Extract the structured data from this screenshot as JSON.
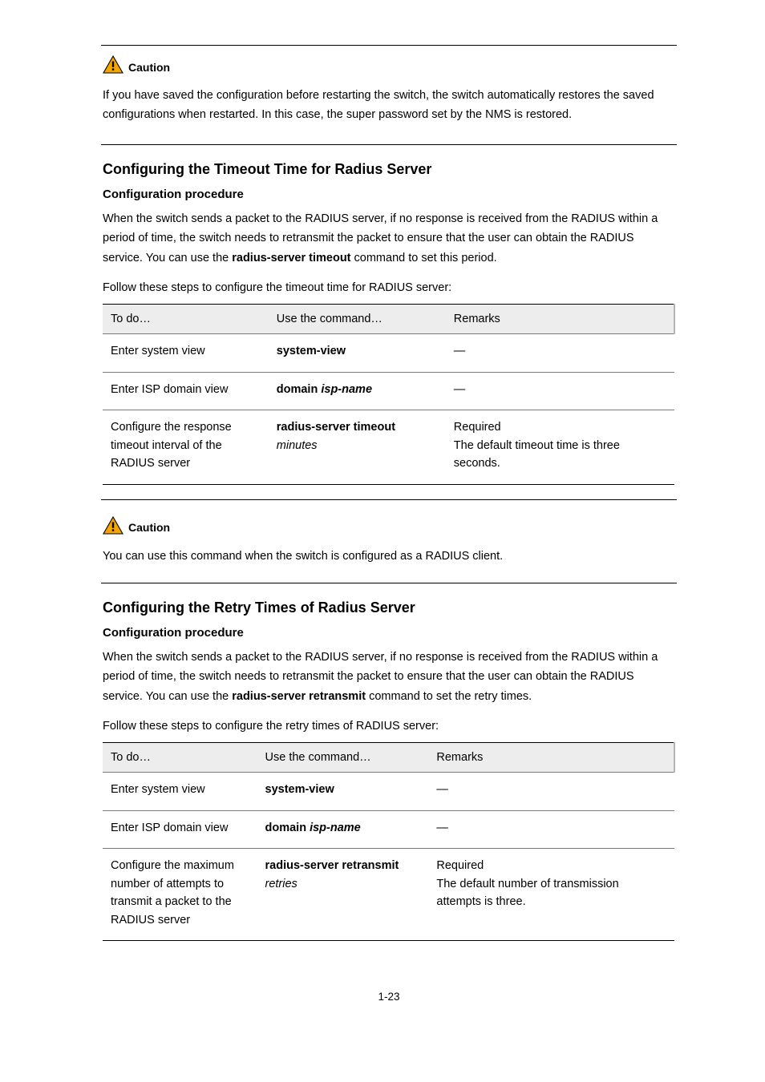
{
  "caution1": {
    "label": "Caution",
    "text": "If you have saved the configuration before restarting the switch, the switch automatically restores the saved configurations when restarted. In this case, the super password set by the NMS is restored."
  },
  "section1": {
    "heading": "Configuring the Timeout Time for Radius Server",
    "subheading": "Configuration procedure",
    "p1_prefix": "When the switch sends a packet to the RADIUS server, if no response is received from the RADIUS within a period of time, the switch needs to retransmit the packet to ensure that the user can obtain the RADIUS service. You can use the ",
    "p1_cmd": "radius-server timeout",
    "p1_suffix": " command to set this period.",
    "p2": "Follow these steps to configure the timeout time for RADIUS server:",
    "table": {
      "columns": [
        "To do…",
        "Use the command…",
        "Remarks"
      ],
      "rows": [
        [
          "Enter system view",
          "system-view",
          "—"
        ],
        [
          "Enter ISP domain view",
          "domain isp-name",
          "—"
        ],
        [
          "Configure the response timeout interval of the RADIUS server",
          "radius-server timeout {minutes}",
          "Required\nThe default timeout time is three seconds."
        ]
      ],
      "col_widths": [
        "29%",
        "31%",
        "40%"
      ]
    }
  },
  "caution2": {
    "label": "Caution",
    "text": "You can use this command when the switch is configured as a RADIUS client."
  },
  "section2": {
    "heading": "Configuring the Retry Times of Radius Server",
    "subheading": "Configuration procedure",
    "p1_prefix": "When the switch sends a packet to the RADIUS server, if no response is received from the RADIUS within a period of time, the switch needs to retransmit the packet to ensure that the user can obtain the RADIUS service. You can use the ",
    "p1_cmd": "radius-server retransmit",
    "p1_suffix": " command to set the retry times.",
    "p2": "Follow these steps to configure the retry times of RADIUS server:",
    "table": {
      "columns": [
        "To do…",
        "Use the command…",
        "Remarks"
      ],
      "rows": [
        [
          "Enter system view",
          "system-view",
          "—"
        ],
        [
          "Enter ISP domain view",
          "domain isp-name",
          "—"
        ],
        [
          "Configure the maximum number of attempts to transmit a packet to the RADIUS server",
          "radius-server retransmit {retries}",
          "Required\nThe default number of transmission attempts is three."
        ]
      ],
      "col_widths": [
        "27%",
        "30%",
        "43%"
      ]
    }
  },
  "page_number": "1-23"
}
